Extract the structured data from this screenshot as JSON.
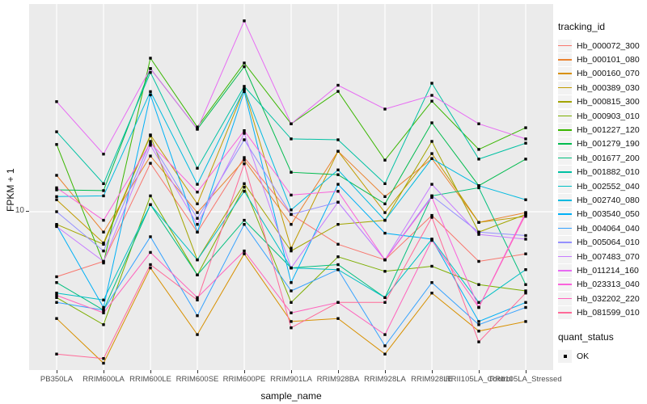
{
  "chart_data": {
    "type": "line",
    "title": "",
    "xlabel": "sample_name",
    "ylabel": "FPKM + 1",
    "y_scale": "log10",
    "y_tick_labels": [
      "10"
    ],
    "y_gridline_value": 10,
    "ylim_approx": [
      1.7,
      95
    ],
    "panel_bg": "#EBEBEB",
    "grid_color": "#FFFFFF",
    "point_shape": "filled-square",
    "point_color": "#000000",
    "legend_title": "tracking_id",
    "quant_legend": {
      "title": "quant_status",
      "label": "OK"
    },
    "categories": [
      "PB350LA",
      "RRIM600LA",
      "RRIM600LE",
      "RRIM600SE",
      "RRIM600PE",
      "RRIM901LA",
      "RRIM928BA",
      "RRIM928LA",
      "RRIM928LE",
      "RRII105LA_Control",
      "RRII105LA_Stressed"
    ],
    "series": [
      {
        "name": "Hb_000072_300",
        "color": "#F8766D",
        "values": [
          4.9,
          5.8,
          17.0,
          8.0,
          18.1,
          9.7,
          7.0,
          5.9,
          9.6,
          5.8,
          6.3
        ]
      },
      {
        "name": "Hb_000101_080",
        "color": "#EA8331",
        "values": [
          14.9,
          8.0,
          18.4,
          9.9,
          17.6,
          8.7,
          19.4,
          11.8,
          17.9,
          8.9,
          9.9
        ]
      },
      {
        "name": "Hb_000160_070",
        "color": "#D89000",
        "values": [
          3.1,
          1.9,
          5.4,
          2.6,
          6.3,
          3.0,
          3.1,
          2.1,
          4.1,
          2.7,
          3.0
        ]
      },
      {
        "name": "Hb_000389_030",
        "color": "#C09B00",
        "values": [
          11.4,
          7.1,
          23.2,
          10.9,
          38.3,
          6.7,
          19.4,
          9.9,
          18.9,
          8.9,
          9.5
        ]
      },
      {
        "name": "Hb_000815_300",
        "color": "#A3A500",
        "values": [
          8.7,
          7.0,
          23.0,
          5.9,
          13.6,
          6.5,
          8.7,
          9.1,
          21.6,
          8.0,
          9.7
        ]
      },
      {
        "name": "Hb_000903_010",
        "color": "#7CAE00",
        "values": [
          3.9,
          2.9,
          11.9,
          5.0,
          13.1,
          3.7,
          6.1,
          5.2,
          5.5,
          4.5,
          4.2
        ]
      },
      {
        "name": "Hb_001227_120",
        "color": "#39B600",
        "values": [
          20.9,
          5.7,
          53.8,
          25.3,
          51.0,
          26.2,
          37.4,
          17.6,
          33.6,
          19.8,
          25.1
        ]
      },
      {
        "name": "Hb_001279_190",
        "color": "#00BB4E",
        "values": [
          12.7,
          12.6,
          48.0,
          24.7,
          49.0,
          15.4,
          15.0,
          10.9,
          26.5,
          13.3,
          17.8
        ]
      },
      {
        "name": "Hb_001677_200",
        "color": "#00BF7D",
        "values": [
          4.6,
          3.4,
          10.8,
          5.0,
          9.1,
          5.4,
          5.6,
          3.9,
          11.9,
          13.0,
          4.5
        ]
      },
      {
        "name": "Hb_001882_010",
        "color": "#00C1A3",
        "values": [
          24.0,
          13.6,
          46.0,
          16.1,
          39.5,
          22.2,
          22.0,
          13.6,
          40.9,
          17.8,
          21.2
        ]
      },
      {
        "name": "Hb_002552_040",
        "color": "#00BFC4",
        "values": [
          4.1,
          3.8,
          10.8,
          5.9,
          12.5,
          5.4,
          5.3,
          3.9,
          7.4,
          3.7,
          5.3
        ]
      },
      {
        "name": "Hb_002740_080",
        "color": "#00BAE0",
        "values": [
          11.8,
          11.9,
          37.3,
          13.5,
          38.3,
          10.2,
          15.8,
          9.1,
          17.9,
          13.3,
          11.4
        ]
      },
      {
        "name": "Hb_003540_050",
        "color": "#00B0F6",
        "values": [
          8.6,
          3.5,
          36.0,
          8.0,
          37.3,
          4.6,
          13.5,
          7.9,
          7.4,
          3.0,
          3.7
        ]
      },
      {
        "name": "Hb_004064_040",
        "color": "#35A2FF",
        "values": [
          3.7,
          3.4,
          7.6,
          3.2,
          8.7,
          4.2,
          5.3,
          2.3,
          4.6,
          2.9,
          3.5
        ]
      },
      {
        "name": "Hb_005064_010",
        "color": "#9590FF",
        "values": [
          10.0,
          6.5,
          21.6,
          9.3,
          22.0,
          9.7,
          11.1,
          5.9,
          11.9,
          8.0,
          7.7
        ]
      },
      {
        "name": "Hb_007483_070",
        "color": "#C77CFF",
        "values": [
          8.5,
          5.8,
          20.7,
          8.7,
          23.6,
          5.4,
          11.1,
          5.9,
          13.5,
          7.8,
          7.4
        ]
      },
      {
        "name": "Hb_011214_160",
        "color": "#E76BF3",
        "values": [
          33.4,
          18.8,
          48.0,
          24.7,
          81.0,
          26.2,
          40.0,
          30.8,
          35.8,
          26.2,
          22.2
        ]
      },
      {
        "name": "Hb_023313_040",
        "color": "#FA62DB",
        "values": [
          13.0,
          9.1,
          21.2,
          12.4,
          24.3,
          12.0,
          12.5,
          5.9,
          11.7,
          3.5,
          9.9
        ]
      },
      {
        "name": "Hb_032202_220",
        "color": "#FF62BC",
        "values": [
          4.0,
          3.3,
          6.4,
          3.9,
          6.5,
          3.3,
          3.7,
          2.6,
          7.3,
          3.5,
          9.7
        ]
      },
      {
        "name": "Hb_081599_010",
        "color": "#FF6A98",
        "values": [
          2.1,
          2.0,
          5.6,
          3.8,
          16.9,
          2.8,
          3.7,
          3.7,
          9.4,
          2.4,
          4.1
        ]
      }
    ]
  }
}
